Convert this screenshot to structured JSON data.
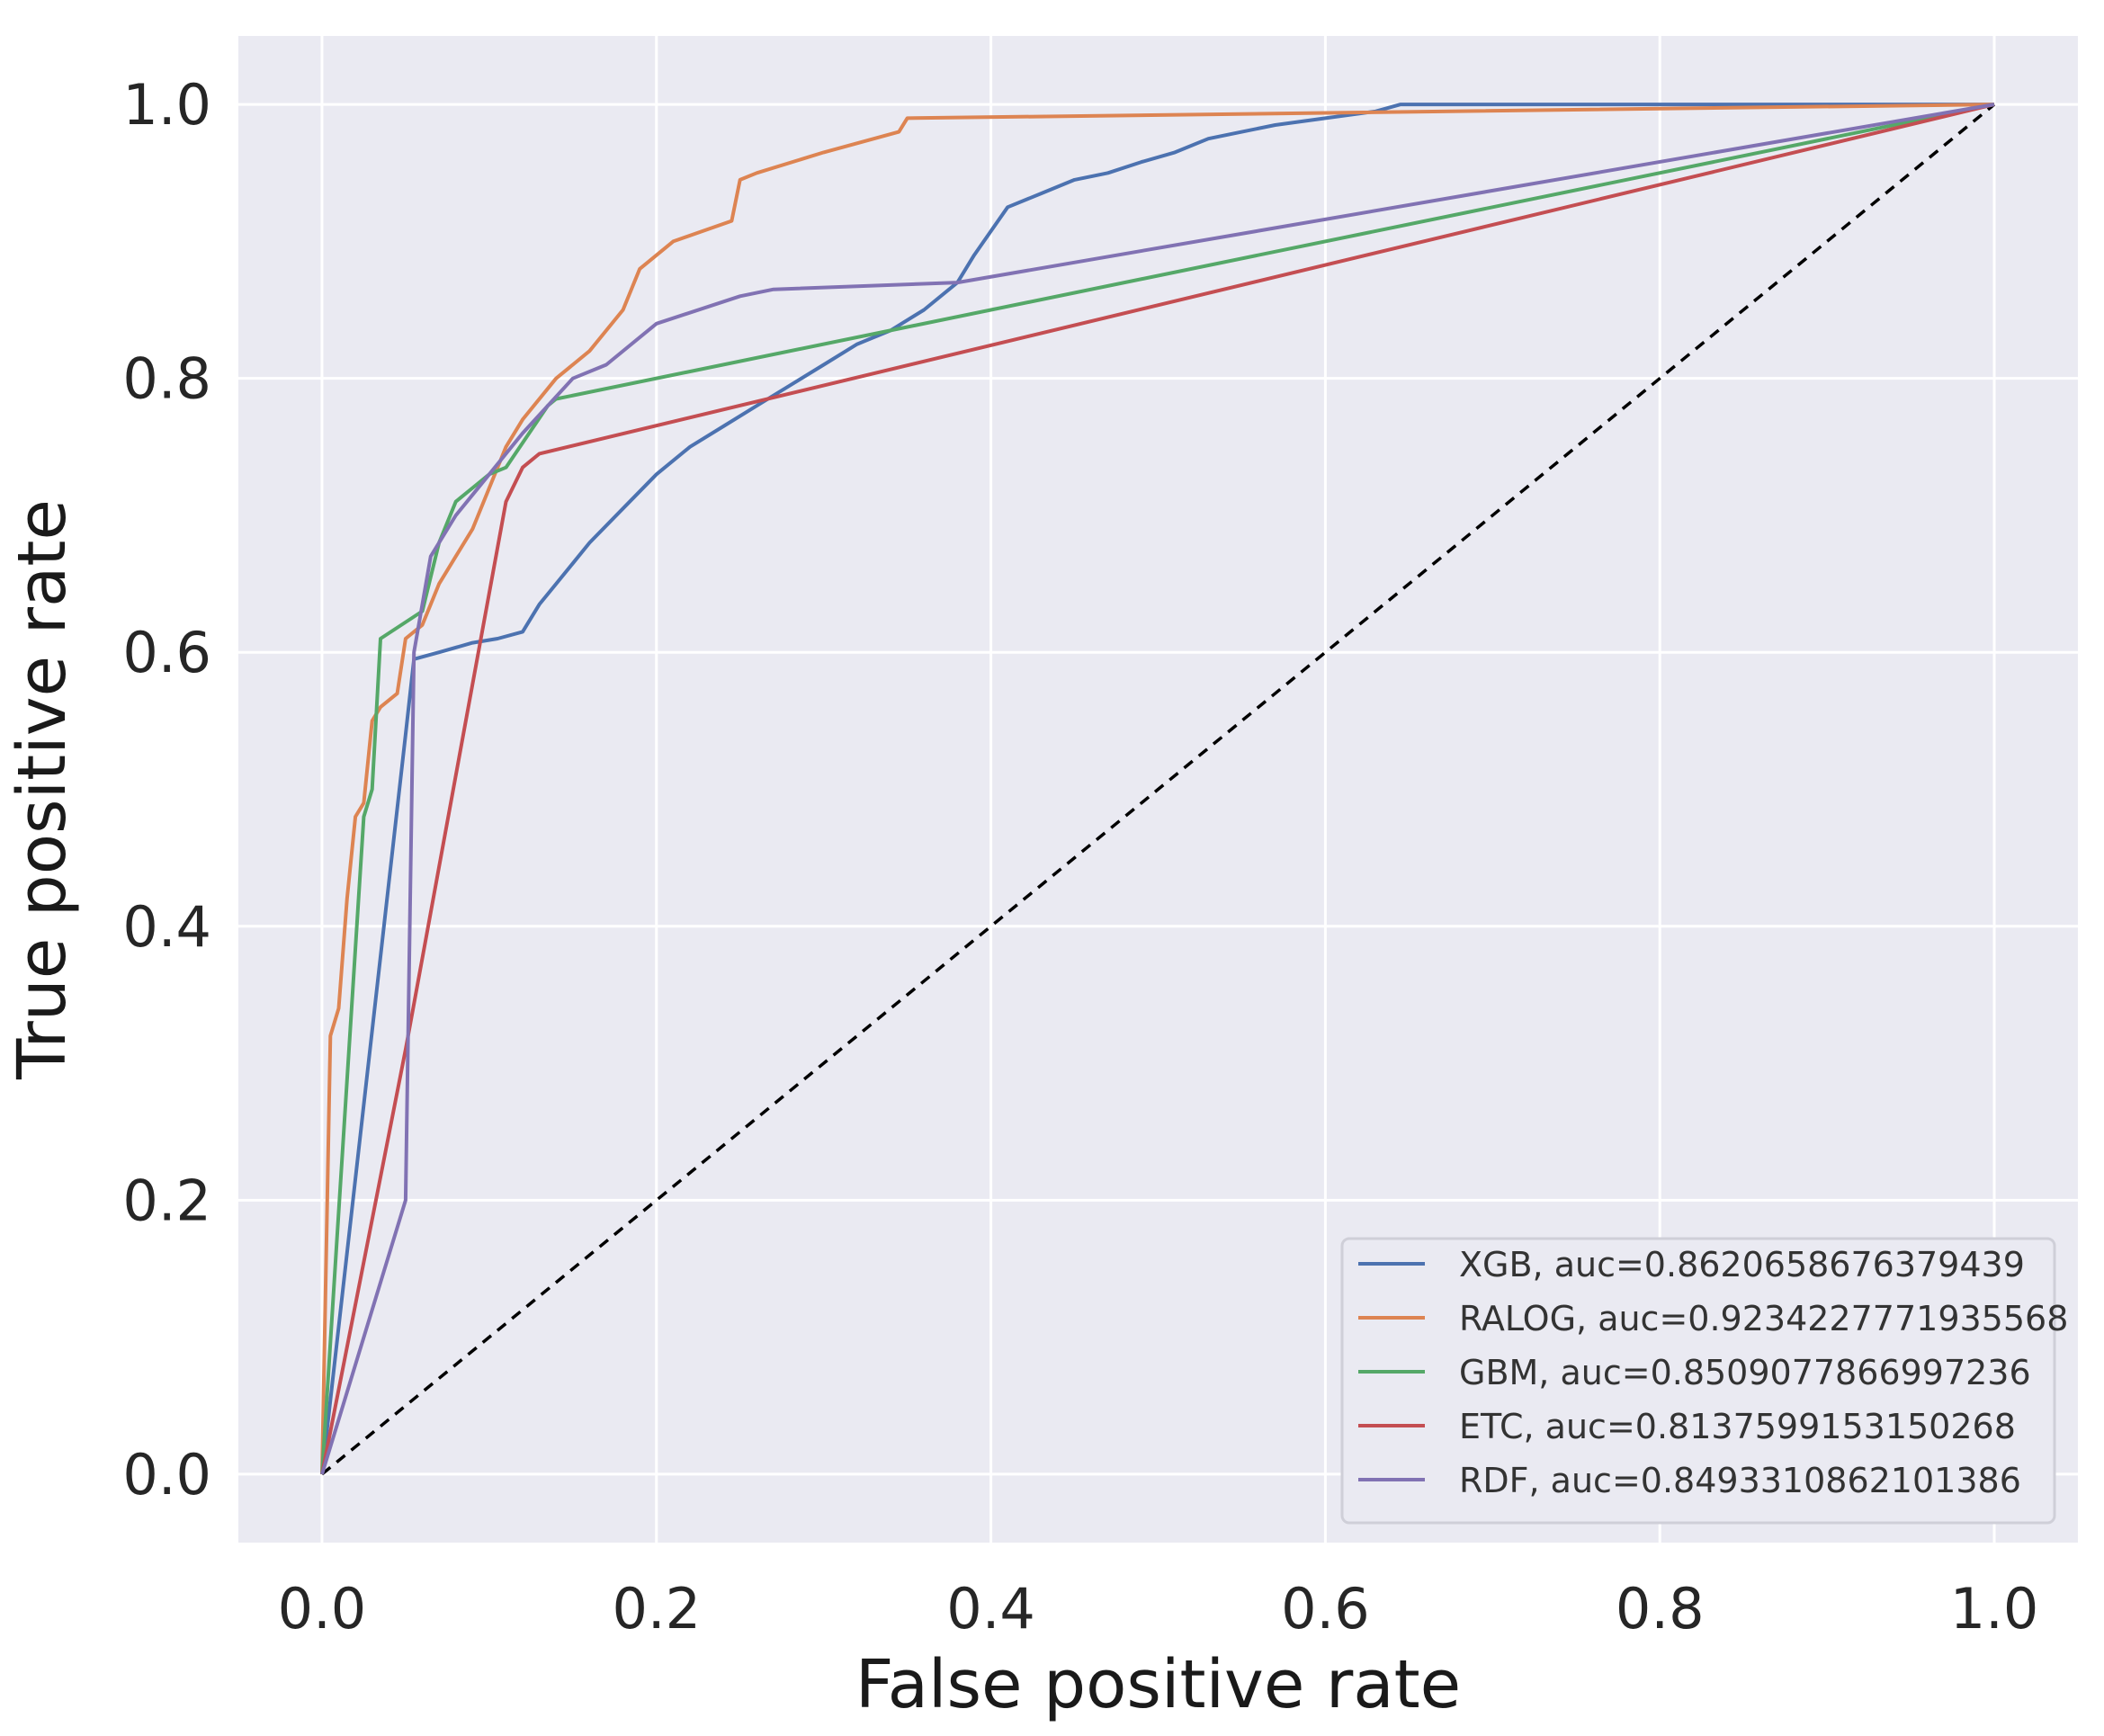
{
  "chart_data": {
    "type": "line",
    "title": "",
    "xlabel": "False positive rate",
    "ylabel": "True positive rate",
    "xlim": [
      -0.05,
      1.05
    ],
    "ylim": [
      -0.05,
      1.05
    ],
    "xticks": [
      0.0,
      0.2,
      0.4,
      0.6,
      0.8,
      1.0
    ],
    "yticks": [
      0.0,
      0.2,
      0.4,
      0.6,
      0.8,
      1.0
    ],
    "xtick_labels": [
      "0.0",
      "0.2",
      "0.4",
      "0.6",
      "0.8",
      "1.0"
    ],
    "ytick_labels": [
      "0.0",
      "0.2",
      "0.4",
      "0.6",
      "0.8",
      "1.0"
    ],
    "grid": true,
    "legend_position": "lower-right",
    "background_color": "#eaeaf2",
    "grid_color": "#ffffff",
    "series": [
      {
        "name": "XGB, auc=0.8620658676379439",
        "color": "#4c72b0",
        "x": [
          0,
          0.05,
          0.055,
          0.07,
          0.09,
          0.105,
          0.12,
          0.13,
          0.14,
          0.15,
          0.16,
          0.18,
          0.2,
          0.22,
          0.24,
          0.26,
          0.28,
          0.3,
          0.32,
          0.34,
          0.36,
          0.38,
          0.39,
          0.41,
          0.43,
          0.45,
          0.47,
          0.49,
          0.51,
          0.53,
          0.55,
          0.57,
          0.6,
          0.63,
          0.645,
          1.0
        ],
        "y": [
          0,
          0.54,
          0.595,
          0.6,
          0.607,
          0.61,
          0.615,
          0.635,
          0.65,
          0.665,
          0.68,
          0.705,
          0.73,
          0.75,
          0.765,
          0.78,
          0.795,
          0.81,
          0.825,
          0.835,
          0.85,
          0.87,
          0.89,
          0.925,
          0.935,
          0.945,
          0.95,
          0.958,
          0.965,
          0.975,
          0.98,
          0.985,
          0.99,
          0.995,
          1.0,
          1.0
        ]
      },
      {
        "name": "RALOG, auc=0.9234227771935568",
        "color": "#dd8452",
        "x": [
          0,
          0.005,
          0.01,
          0.015,
          0.02,
          0.025,
          0.03,
          0.035,
          0.045,
          0.05,
          0.06,
          0.07,
          0.08,
          0.09,
          0.1,
          0.11,
          0.12,
          0.14,
          0.16,
          0.18,
          0.19,
          0.21,
          0.245,
          0.25,
          0.26,
          0.3,
          0.345,
          0.35,
          1.0
        ],
        "y": [
          0,
          0.32,
          0.34,
          0.42,
          0.48,
          0.49,
          0.55,
          0.56,
          0.57,
          0.61,
          0.62,
          0.65,
          0.67,
          0.69,
          0.72,
          0.75,
          0.77,
          0.8,
          0.82,
          0.85,
          0.88,
          0.9,
          0.915,
          0.945,
          0.95,
          0.965,
          0.98,
          0.99,
          1.0
        ]
      },
      {
        "name": "GBM, auc=0.8509077866997236",
        "color": "#55a868",
        "x": [
          0,
          0.025,
          0.03,
          0.035,
          0.06,
          0.07,
          0.08,
          0.09,
          0.1,
          0.11,
          0.135,
          0.14,
          1.0
        ],
        "y": [
          0,
          0.48,
          0.5,
          0.61,
          0.63,
          0.68,
          0.71,
          0.72,
          0.73,
          0.735,
          0.78,
          0.785,
          1.0
        ]
      },
      {
        "name": "ETC, auc=0.8137599153150268",
        "color": "#c44e52",
        "x": [
          0,
          0.05,
          0.11,
          0.12,
          0.13,
          1.0
        ],
        "y": [
          0,
          0.31,
          0.71,
          0.735,
          0.745,
          1.0
        ]
      },
      {
        "name": "RDF, auc=0.8493310862101386",
        "color": "#8172b3",
        "x": [
          0,
          0.05,
          0.055,
          0.065,
          0.08,
          0.1,
          0.12,
          0.15,
          0.17,
          0.2,
          0.25,
          0.27,
          0.38,
          1.0
        ],
        "y": [
          0,
          0.2,
          0.6,
          0.67,
          0.7,
          0.73,
          0.76,
          0.8,
          0.81,
          0.84,
          0.86,
          0.865,
          0.87,
          1.0
        ]
      },
      {
        "name": "chance",
        "color": "#000000",
        "dashed": true,
        "in_legend": false,
        "x": [
          0,
          1
        ],
        "y": [
          0,
          1
        ]
      }
    ]
  }
}
